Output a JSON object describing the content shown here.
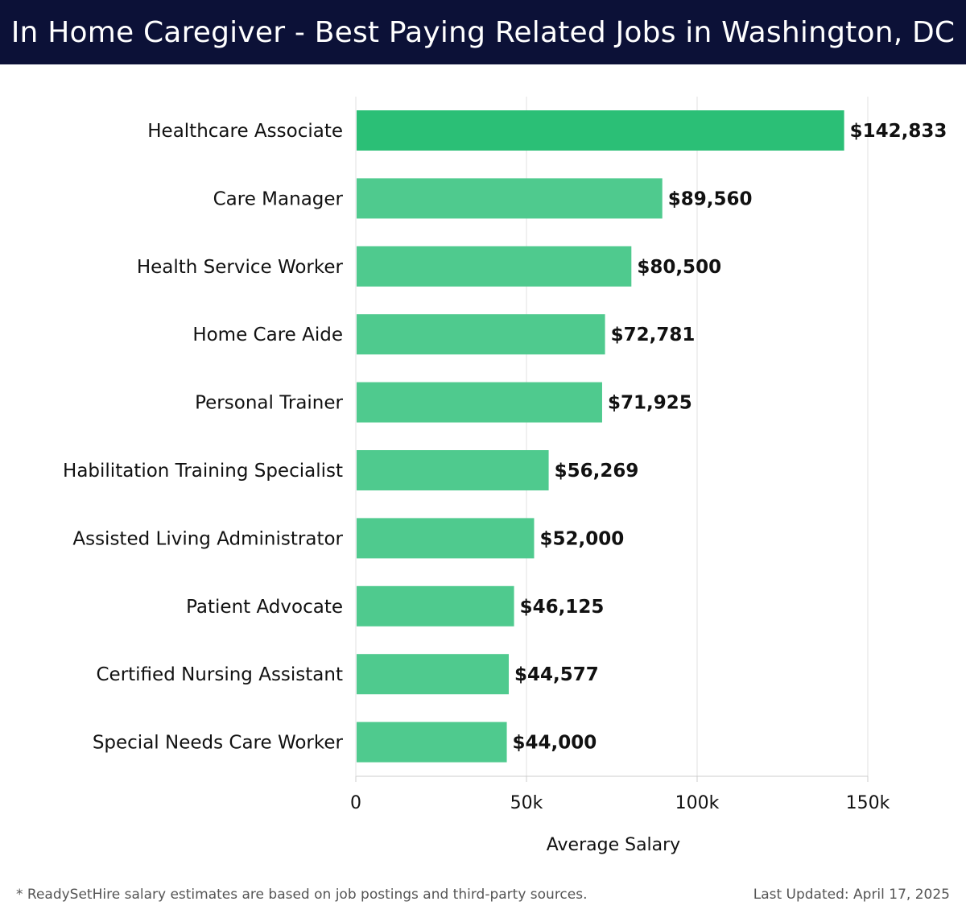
{
  "header": {
    "title": "In Home Caregiver - Best Paying Related Jobs in Washington, DC"
  },
  "chart_data": {
    "type": "bar",
    "orientation": "horizontal",
    "title": "In Home Caregiver - Best Paying Related Jobs in Washington, DC",
    "categories": [
      "Healthcare Associate",
      "Care Manager",
      "Health Service Worker",
      "Home Care Aide",
      "Personal Trainer",
      "Habilitation Training Specialist",
      "Assisted Living Administrator",
      "Patient Advocate",
      "Certified Nursing Assistant",
      "Special Needs Care Worker"
    ],
    "values": [
      142833,
      89560,
      80500,
      72781,
      71925,
      56269,
      52000,
      46125,
      44577,
      44000
    ],
    "value_labels": [
      "$142,833",
      "$89,560",
      "$80,500",
      "$72,781",
      "$71,925",
      "$56,269",
      "$52,000",
      "$46,125",
      "$44,577",
      "$44,000"
    ],
    "xlabel": "Average Salary",
    "ylabel": "",
    "xlim": [
      0,
      150000
    ],
    "xticks": [
      0,
      50000,
      100000,
      150000
    ],
    "xtick_labels": [
      "0",
      "50k",
      "100k",
      "150k"
    ],
    "grid": true,
    "colors": {
      "top_bar": "#2bbf76",
      "bar": "#4fca8e",
      "grid": "#e2e2e2",
      "axis": "#cccccc",
      "text": "#111111"
    }
  },
  "footer": {
    "note": "* ReadySetHire salary estimates are based on job postings and third-party sources.",
    "updated": "Last Updated: April 17, 2025"
  }
}
